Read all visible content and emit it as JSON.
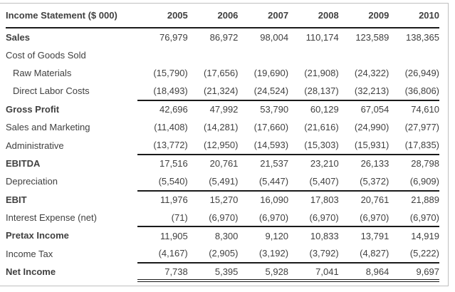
{
  "page": {
    "background": "#ffffff",
    "frame_color": "#bfbfbf",
    "text_color": "#404040",
    "rule_color": "#1a1a1a"
  },
  "table": {
    "title": "Income Statement ($ 000)",
    "years": [
      "2005",
      "2006",
      "2007",
      "2008",
      "2009",
      "2010"
    ],
    "rows": [
      {
        "label": "Sales",
        "bold": true,
        "values": [
          "76,979",
          "86,972",
          "98,004",
          "110,174",
          "123,589",
          "138,365"
        ]
      },
      {
        "label": "Cost of Goods Sold",
        "values": [
          "",
          "",
          "",
          "",
          "",
          ""
        ]
      },
      {
        "label": "Raw Materials",
        "indent": true,
        "values": [
          "(15,790)",
          "(17,656)",
          "(19,690)",
          "(21,908)",
          "(24,322)",
          "(26,949)"
        ]
      },
      {
        "label": "Direct Labor Costs",
        "indent": true,
        "values": [
          "(18,493)",
          "(21,324)",
          "(24,524)",
          "(28,137)",
          "(32,213)",
          "(36,806)"
        ]
      },
      {
        "label": "Gross Profit",
        "bold": true,
        "rule_above": true,
        "values": [
          "42,696",
          "47,992",
          "53,790",
          "60,129",
          "67,054",
          "74,610"
        ]
      },
      {
        "label": "Sales and Marketing",
        "values": [
          "(11,408)",
          "(14,281)",
          "(17,660)",
          "(21,616)",
          "(24,990)",
          "(27,977)"
        ]
      },
      {
        "label": "Administrative",
        "values": [
          "(13,772)",
          "(12,950)",
          "(14,593)",
          "(15,303)",
          "(15,931)",
          "(17,835)"
        ]
      },
      {
        "label": "EBITDA",
        "bold": true,
        "rule_above": true,
        "values": [
          "17,516",
          "20,761",
          "21,537",
          "23,210",
          "26,133",
          "28,798"
        ]
      },
      {
        "label": "Depreciation",
        "values": [
          "(5,540)",
          "(5,491)",
          "(5,447)",
          "(5,407)",
          "(5,372)",
          "(6,909)"
        ]
      },
      {
        "label": "EBIT",
        "bold": true,
        "rule_above": true,
        "values": [
          "11,976",
          "15,270",
          "16,090",
          "17,803",
          "20,761",
          "21,889"
        ]
      },
      {
        "label": "Interest Expense (net)",
        "values": [
          "(71)",
          "(6,970)",
          "(6,970)",
          "(6,970)",
          "(6,970)",
          "(6,970)"
        ]
      },
      {
        "label": "Pretax Income",
        "bold": true,
        "rule_above": true,
        "values": [
          "11,905",
          "8,300",
          "9,120",
          "10,833",
          "13,791",
          "14,919"
        ]
      },
      {
        "label": "Income Tax",
        "values": [
          "(4,167)",
          "(2,905)",
          "(3,192)",
          "(3,792)",
          "(4,827)",
          "(5,222)"
        ]
      },
      {
        "label": "Net Income",
        "bold": true,
        "rule_above": true,
        "double_rule_below": true,
        "values": [
          "7,738",
          "5,395",
          "5,928",
          "7,041",
          "8,964",
          "9,697"
        ]
      }
    ]
  }
}
